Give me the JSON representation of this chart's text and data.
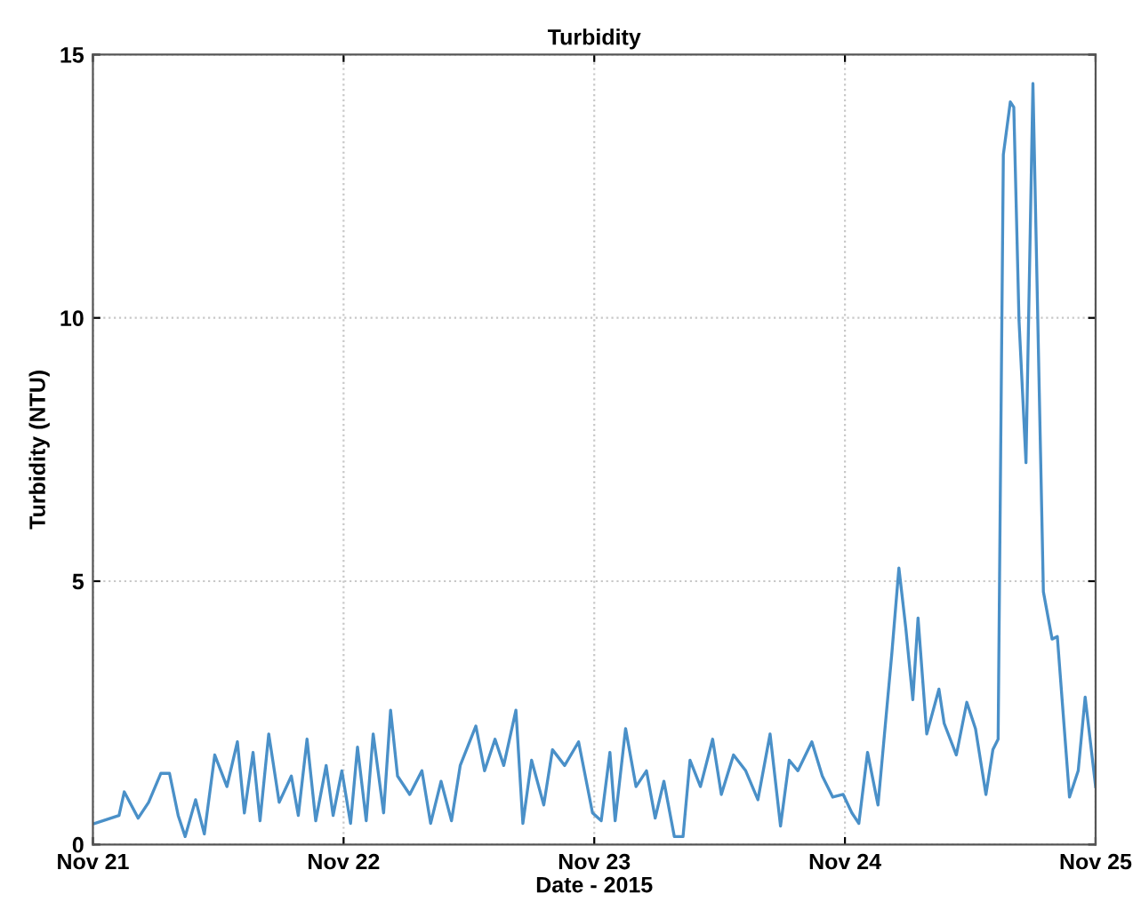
{
  "chart_data": {
    "type": "line",
    "title": "Turbidity",
    "xlabel": "Date - 2015",
    "ylabel": "Turbidity (NTU)",
    "xlim": [
      "2015-11-21",
      "2015-11-25"
    ],
    "xticks": [
      {
        "value": "2015-11-21",
        "label": "Nov 21"
      },
      {
        "value": "2015-11-22",
        "label": "Nov 22"
      },
      {
        "value": "2015-11-23",
        "label": "Nov 23"
      },
      {
        "value": "2015-11-24",
        "label": "Nov 24"
      },
      {
        "value": "2015-11-25",
        "label": "Nov 25"
      }
    ],
    "ylim": [
      0,
      15
    ],
    "yticks": [
      0,
      5,
      10,
      15
    ],
    "grid": true,
    "marker": "none",
    "line_style": "solid",
    "series": [
      {
        "color": "#4a90c8",
        "x": [
          "2015-11-21T00:10",
          "2015-11-21T02:30",
          "2015-11-21T03:00",
          "2015-11-21T04:20",
          "2015-11-21T05:20",
          "2015-11-21T06:30",
          "2015-11-21T07:20",
          "2015-11-21T08:10",
          "2015-11-21T08:50",
          "2015-11-21T09:50",
          "2015-11-21T10:40",
          "2015-11-21T11:40",
          "2015-11-21T12:50",
          "2015-11-21T13:50",
          "2015-11-21T14:30",
          "2015-11-21T15:20",
          "2015-11-21T16:00",
          "2015-11-21T16:50",
          "2015-11-21T17:50",
          "2015-11-21T19:00",
          "2015-11-21T19:40",
          "2015-11-21T20:30",
          "2015-11-21T21:20",
          "2015-11-21T22:20",
          "2015-11-21T23:00",
          "2015-11-21T23:50",
          "2015-11-22T00:40",
          "2015-11-22T01:20",
          "2015-11-22T02:10",
          "2015-11-22T02:50",
          "2015-11-22T03:50",
          "2015-11-22T04:30",
          "2015-11-22T05:10",
          "2015-11-22T06:20",
          "2015-11-22T07:30",
          "2015-11-22T08:20",
          "2015-11-22T09:20",
          "2015-11-22T10:20",
          "2015-11-22T11:10",
          "2015-11-22T12:40",
          "2015-11-22T13:30",
          "2015-11-22T14:30",
          "2015-11-22T15:20",
          "2015-11-22T16:30",
          "2015-11-22T17:10",
          "2015-11-22T18:00",
          "2015-11-22T19:10",
          "2015-11-22T20:00",
          "2015-11-22T21:10",
          "2015-11-22T22:30",
          "2015-11-22T23:50",
          "2015-11-23T00:40",
          "2015-11-23T01:30",
          "2015-11-23T02:00",
          "2015-11-23T03:00",
          "2015-11-23T04:00",
          "2015-11-23T05:00",
          "2015-11-23T05:50",
          "2015-11-23T06:40",
          "2015-11-23T07:40",
          "2015-11-23T08:30",
          "2015-11-23T09:10",
          "2015-11-23T10:10",
          "2015-11-23T11:20",
          "2015-11-23T12:10",
          "2015-11-23T13:20",
          "2015-11-23T14:30",
          "2015-11-23T15:40",
          "2015-11-23T16:50",
          "2015-11-23T17:50",
          "2015-11-23T18:40",
          "2015-11-23T19:30",
          "2015-11-23T20:50",
          "2015-11-23T21:50",
          "2015-11-23T22:50",
          "2015-11-23T23:50",
          "2015-11-24T00:40",
          "2015-11-24T01:20",
          "2015-11-24T02:10",
          "2015-11-24T03:10",
          "2015-11-24T04:30",
          "2015-11-24T05:10",
          "2015-11-24T05:50",
          "2015-11-24T06:30",
          "2015-11-24T07:00",
          "2015-11-24T07:50",
          "2015-11-24T09:00",
          "2015-11-24T09:30",
          "2015-11-24T10:40",
          "2015-11-24T11:40",
          "2015-11-24T12:30",
          "2015-11-24T13:30",
          "2015-11-24T14:10",
          "2015-11-24T14:40",
          "2015-11-24T15:10",
          "2015-11-24T15:50",
          "2015-11-24T16:10",
          "2015-11-24T16:40",
          "2015-11-24T17:20",
          "2015-11-24T18:00",
          "2015-11-24T19:00",
          "2015-11-24T19:50",
          "2015-11-24T20:20",
          "2015-11-24T21:30",
          "2015-11-24T22:20",
          "2015-11-24T23:00",
          "2015-11-25T00:00"
        ],
        "values": [
          0.4,
          0.55,
          1.0,
          0.5,
          0.8,
          1.35,
          1.35,
          0.55,
          0.15,
          0.85,
          0.2,
          1.7,
          1.1,
          1.95,
          0.6,
          1.75,
          0.45,
          2.1,
          0.8,
          1.3,
          0.55,
          2.0,
          0.45,
          1.5,
          0.55,
          1.4,
          0.4,
          1.85,
          0.45,
          2.1,
          0.6,
          2.55,
          1.3,
          0.95,
          1.4,
          0.4,
          1.2,
          0.45,
          1.5,
          2.25,
          1.4,
          2.0,
          1.5,
          2.55,
          0.4,
          1.6,
          0.75,
          1.8,
          1.5,
          1.95,
          0.6,
          0.45,
          1.75,
          0.45,
          2.2,
          1.1,
          1.4,
          0.5,
          1.2,
          0.15,
          0.15,
          1.6,
          1.1,
          2.0,
          0.95,
          1.7,
          1.4,
          0.85,
          2.1,
          0.35,
          1.6,
          1.4,
          1.95,
          1.3,
          0.9,
          0.95,
          0.6,
          0.4,
          1.75,
          0.75,
          3.65,
          5.25,
          4.1,
          2.75,
          4.3,
          2.1,
          2.95,
          2.3,
          1.7,
          2.7,
          2.2,
          0.95,
          1.8,
          2.0,
          13.1,
          14.1,
          14.0,
          9.95,
          7.25,
          14.45,
          4.8,
          3.9,
          3.95,
          0.9,
          1.4,
          2.8,
          1.1
        ]
      }
    ]
  }
}
